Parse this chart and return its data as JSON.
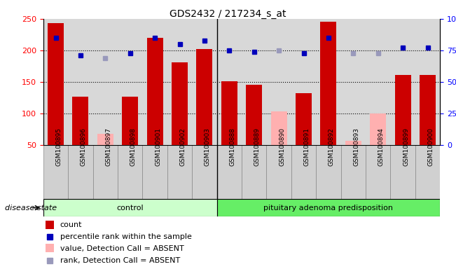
{
  "title": "GDS2432 / 217234_s_at",
  "samples": [
    "GSM100895",
    "GSM100896",
    "GSM100897",
    "GSM100898",
    "GSM100901",
    "GSM100902",
    "GSM100903",
    "GSM100888",
    "GSM100889",
    "GSM100890",
    "GSM100891",
    "GSM100892",
    "GSM100893",
    "GSM100894",
    "GSM100899",
    "GSM100900"
  ],
  "n_control": 7,
  "n_pituitary": 9,
  "bar_values": [
    243,
    127,
    0,
    127,
    220,
    181,
    202,
    151,
    146,
    0,
    132,
    245,
    0,
    0,
    161,
    161
  ],
  "bar_absent_values": [
    0,
    0,
    68,
    0,
    0,
    0,
    0,
    0,
    0,
    104,
    0,
    0,
    57,
    100,
    0,
    0
  ],
  "dot_values_pct": [
    85,
    71,
    0,
    73,
    85,
    80,
    83,
    75,
    74,
    0,
    73,
    85,
    0,
    0,
    77,
    77
  ],
  "dot_absent_pct": [
    0,
    0,
    69,
    0,
    0,
    0,
    0,
    0,
    0,
    75,
    0,
    0,
    73,
    73,
    0,
    0
  ],
  "absent_mask": [
    false,
    false,
    true,
    false,
    false,
    false,
    false,
    false,
    false,
    true,
    false,
    false,
    true,
    true,
    false,
    false
  ],
  "ylim_min": 50,
  "ylim_max": 250,
  "yticks": [
    50,
    100,
    150,
    200,
    250
  ],
  "y2ticks": [
    0,
    25,
    50,
    75,
    100
  ],
  "group_labels": [
    "control",
    "pituitary adenoma predisposition"
  ],
  "bar_color": "#cc0000",
  "bar_absent_color": "#ffb0b0",
  "dot_color": "#0000bb",
  "dot_absent_color": "#9999bb",
  "bg_plot": "#d8d8d8",
  "bg_label": "#d0d0d0",
  "bg_ctrl": "#ccffcc",
  "bg_pit": "#66ee66",
  "legend_items": [
    "count",
    "percentile rank within the sample",
    "value, Detection Call = ABSENT",
    "rank, Detection Call = ABSENT"
  ],
  "legend_colors": [
    "#cc0000",
    "#0000bb",
    "#ffb0b0",
    "#9999bb"
  ],
  "legend_is_square": [
    true,
    false,
    true,
    false
  ]
}
